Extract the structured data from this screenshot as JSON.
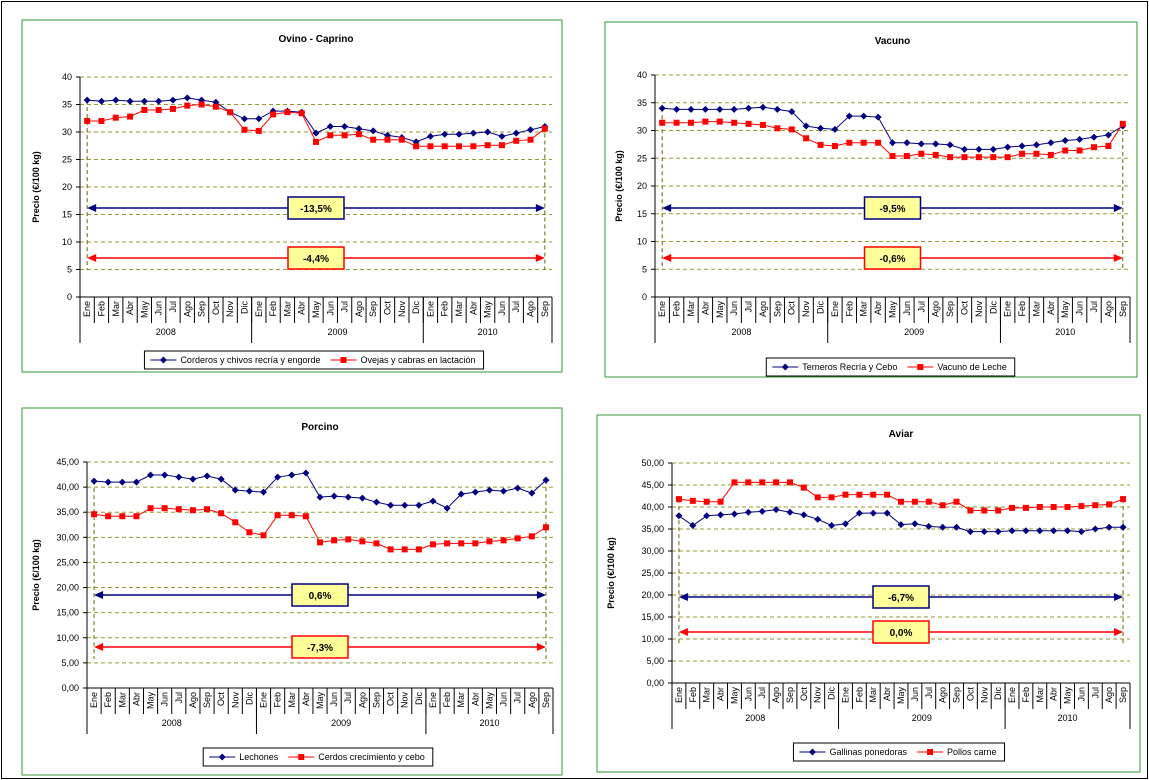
{
  "chart_data": [
    {
      "type": "line",
      "title": "Ovino - Caprino",
      "y_label": "Precio (€/100 kg)",
      "categories": [
        "Ene",
        "Feb",
        "Mar",
        "Abr",
        "May",
        "Jun",
        "Jul",
        "Ago",
        "Sep",
        "Oct",
        "Nov",
        "Dic",
        "Ene",
        "Feb",
        "Mar",
        "Abr",
        "May",
        "Jun",
        "Jul",
        "Ago",
        "Sep",
        "Oct",
        "Nov",
        "Dic",
        "Ene",
        "Feb",
        "Mar",
        "Abr",
        "May",
        "Jun",
        "Jul",
        "Ago",
        "Sep"
      ],
      "years": [
        "2008",
        "2009",
        "2010"
      ],
      "ylim": [
        0,
        40
      ],
      "yticks": [
        0,
        5,
        10,
        15,
        20,
        25,
        30,
        35,
        40
      ],
      "grid": true,
      "series": [
        {
          "name": "Corderos y chivos recría y engorde",
          "color": "#000080",
          "marker": "diamond",
          "values": [
            35.8,
            35.6,
            35.8,
            35.6,
            35.6,
            35.6,
            35.8,
            36.2,
            35.8,
            35.4,
            33.6,
            32.4,
            32.4,
            33.8,
            33.8,
            33.6,
            29.8,
            31,
            31,
            30.6,
            30.2,
            29.4,
            29,
            28.2,
            29.2,
            29.6,
            29.6,
            29.8,
            30,
            29.2,
            29.8,
            30.4,
            31
          ]
        },
        {
          "name": "Ovejas y cabras en lactación",
          "color": "#ff0000",
          "marker": "square",
          "values": [
            32,
            32,
            32.6,
            32.8,
            34,
            34,
            34.2,
            34.8,
            35,
            34.6,
            33.6,
            30.4,
            30.2,
            33.2,
            33.6,
            33.4,
            28.2,
            29.4,
            29.4,
            29.6,
            28.6,
            28.6,
            28.6,
            27.4,
            27.4,
            27.4,
            27.4,
            27.4,
            27.6,
            27.6,
            28.4,
            28.6,
            30.6
          ]
        }
      ],
      "annotations": [
        {
          "text": "-13,5%",
          "color": "#000080"
        },
        {
          "text": "-4,4%",
          "color": "#ff0000"
        }
      ]
    },
    {
      "type": "line",
      "title": "Vacuno",
      "y_label": "Precio (€/100 kg)",
      "categories": [
        "Ene",
        "Feb",
        "Mar",
        "Abr",
        "May",
        "Jun",
        "Jul",
        "Ago",
        "Sep",
        "Oct",
        "Nov",
        "Dic",
        "Ene",
        "Feb",
        "Mar",
        "Abr",
        "May",
        "Jun",
        "Jul",
        "Ago",
        "Sep",
        "Oct",
        "Nov",
        "Dic",
        "Ene",
        "Feb",
        "Mar",
        "Abr",
        "May",
        "Jun",
        "Jul",
        "Ago",
        "Sep"
      ],
      "years": [
        "2008",
        "2009",
        "2010"
      ],
      "ylim": [
        0,
        40
      ],
      "yticks": [
        0,
        5,
        10,
        15,
        20,
        25,
        30,
        35,
        40
      ],
      "grid": true,
      "series": [
        {
          "name": "Terneros Recría y Cebo",
          "color": "#000080",
          "marker": "diamond",
          "values": [
            34,
            33.8,
            33.8,
            33.8,
            33.8,
            33.8,
            34,
            34.2,
            33.8,
            33.4,
            30.8,
            30.4,
            30.2,
            32.6,
            32.6,
            32.4,
            27.8,
            27.8,
            27.6,
            27.6,
            27.4,
            26.6,
            26.6,
            26.6,
            27,
            27.2,
            27.4,
            27.8,
            28.2,
            28.4,
            28.8,
            29.2,
            30.8
          ]
        },
        {
          "name": "Vacuno de Leche",
          "color": "#ff0000",
          "marker": "square",
          "values": [
            31.4,
            31.4,
            31.4,
            31.6,
            31.6,
            31.4,
            31.2,
            31,
            30.4,
            30.2,
            28.6,
            27.4,
            27.2,
            27.8,
            27.8,
            27.8,
            25.4,
            25.4,
            25.8,
            25.6,
            25.2,
            25.2,
            25.2,
            25.2,
            25.2,
            25.8,
            25.8,
            25.6,
            26.4,
            26.4,
            27,
            27.2,
            31.2
          ]
        }
      ],
      "annotations": [
        {
          "text": "-9,5%",
          "color": "#000080"
        },
        {
          "text": "-0,6%",
          "color": "#ff0000"
        }
      ]
    },
    {
      "type": "line",
      "title": "Porcino",
      "y_label": "Precio (€/100 kg)",
      "categories": [
        "Ene",
        "Feb",
        "Mar",
        "Abr",
        "May",
        "Jun",
        "Jul",
        "Ago",
        "Sep",
        "Oct",
        "Nov",
        "Dic",
        "Ene",
        "Feb",
        "Mar",
        "Abr",
        "May",
        "Jun",
        "Jul",
        "Ago",
        "Sep",
        "Oct",
        "Nov",
        "Dic",
        "Ene",
        "Feb",
        "Mar",
        "Abr",
        "May",
        "Jun",
        "Jul",
        "Ago",
        "Sep"
      ],
      "years": [
        "2008",
        "2009",
        "2010"
      ],
      "ylim": [
        0,
        45
      ],
      "yticks": [
        {
          "value": 0,
          "label": "0,00"
        },
        {
          "value": 5,
          "label": "5,00"
        },
        {
          "value": 10,
          "label": "10,00"
        },
        {
          "value": 15,
          "label": "15,00"
        },
        {
          "value": 20,
          "label": "20,00"
        },
        {
          "value": 25,
          "label": "25,00"
        },
        {
          "value": 30,
          "label": "30,00"
        },
        {
          "value": 35,
          "label": "35,00"
        },
        {
          "value": 40,
          "label": "40,00"
        },
        {
          "value": 45,
          "label": "45,00"
        }
      ],
      "grid": true,
      "series": [
        {
          "name": "Lechones",
          "color": "#000080",
          "marker": "diamond",
          "values": [
            41.2,
            41,
            41,
            41,
            42.4,
            42.4,
            42,
            41.6,
            42.2,
            41.6,
            39.4,
            39.2,
            39,
            42,
            42.4,
            42.8,
            38,
            38.2,
            38,
            37.8,
            37,
            36.4,
            36.4,
            36.4,
            37.2,
            35.8,
            38.6,
            39,
            39.4,
            39.2,
            39.8,
            38.8,
            41.4
          ]
        },
        {
          "name": "Cerdos crecimiento y cebo",
          "color": "#ff0000",
          "marker": "square",
          "values": [
            34.6,
            34.2,
            34.2,
            34.2,
            35.8,
            35.8,
            35.6,
            35.4,
            35.6,
            34.8,
            33,
            31,
            30.4,
            34.4,
            34.4,
            34.2,
            29,
            29.4,
            29.6,
            29.2,
            28.8,
            27.6,
            27.6,
            27.6,
            28.6,
            28.8,
            28.8,
            28.8,
            29.2,
            29.4,
            29.8,
            30.2,
            32
          ]
        }
      ],
      "annotations": [
        {
          "text": "0,6%",
          "color": "#000080"
        },
        {
          "text": "-7,3%",
          "color": "#ff0000"
        }
      ]
    },
    {
      "type": "line",
      "title": "Aviar",
      "y_label": "Precio (€/100 kg)",
      "categories": [
        "Ene",
        "Feb",
        "Mar",
        "Abr",
        "May",
        "Jun",
        "Jul",
        "Ago",
        "Sep",
        "Oct",
        "Nov",
        "Dic",
        "Ene",
        "Feb",
        "Mar",
        "Abr",
        "May",
        "Jun",
        "Jul",
        "Ago",
        "Sep",
        "Oct",
        "Nov",
        "Dic",
        "Ene",
        "Feb",
        "Mar",
        "Abr",
        "May",
        "Jun",
        "Jul",
        "Ago",
        "Sep"
      ],
      "years": [
        "2008",
        "2009",
        "2010"
      ],
      "ylim": [
        0,
        50
      ],
      "yticks": [
        {
          "value": 0,
          "label": "0,00"
        },
        {
          "value": 5,
          "label": "5,00"
        },
        {
          "value": 10,
          "label": "10,00"
        },
        {
          "value": 15,
          "label": "15,00"
        },
        {
          "value": 20,
          "label": "20,00"
        },
        {
          "value": 25,
          "label": "25,00"
        },
        {
          "value": 30,
          "label": "30,00"
        },
        {
          "value": 35,
          "label": "35,00"
        },
        {
          "value": 40,
          "label": "40,00"
        },
        {
          "value": 45,
          "label": "45,00"
        },
        {
          "value": 50,
          "label": "50,00"
        }
      ],
      "grid": true,
      "series": [
        {
          "name": "Gallinas ponedoras",
          "color": "#000080",
          "marker": "diamond",
          "values": [
            38,
            35.8,
            38,
            38.2,
            38.4,
            38.8,
            39,
            39.4,
            38.8,
            38.2,
            37.2,
            35.8,
            36.2,
            38.6,
            38.6,
            38.6,
            36,
            36.2,
            35.6,
            35.4,
            35.4,
            34.4,
            34.4,
            34.4,
            34.6,
            34.6,
            34.6,
            34.6,
            34.6,
            34.4,
            35,
            35.4,
            35.4
          ]
        },
        {
          "name": "Pollos carne",
          "color": "#ff0000",
          "marker": "square",
          "values": [
            41.8,
            41.4,
            41.2,
            41.2,
            45.6,
            45.6,
            45.6,
            45.6,
            45.6,
            44.4,
            42.2,
            42.2,
            42.8,
            42.8,
            42.8,
            42.8,
            41.2,
            41.2,
            41.2,
            40.4,
            41.2,
            39.2,
            39.2,
            39.2,
            39.8,
            39.8,
            40,
            40,
            40,
            40.2,
            40.4,
            40.6,
            41.8
          ]
        }
      ],
      "annotations": [
        {
          "text": "-6,7%",
          "color": "#000080"
        },
        {
          "text": "0,0%",
          "color": "#ff0000"
        }
      ]
    }
  ]
}
